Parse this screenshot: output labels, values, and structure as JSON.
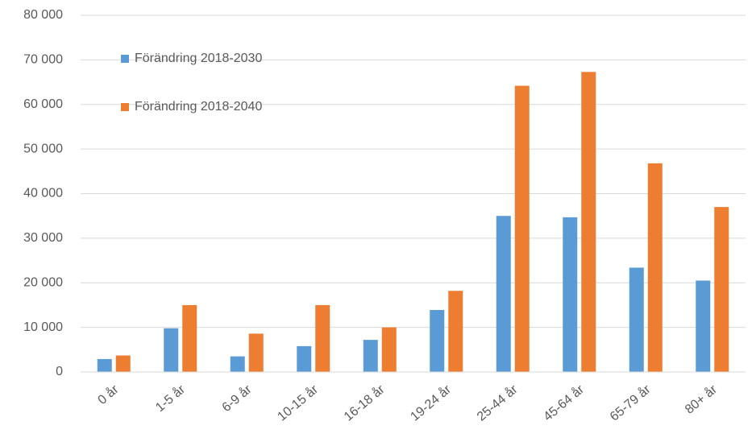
{
  "chart_data": {
    "type": "bar",
    "categories": [
      "0 år",
      "1-5 år",
      "6-9 år",
      "10-15 år",
      "16-18 år",
      "19-24 år",
      "25-44 år",
      "45-64 år",
      "65-79 år",
      "80+ år"
    ],
    "series": [
      {
        "name": "Förändring 2018-2030",
        "color": "#5b9bd5",
        "values": [
          2900,
          9800,
          3500,
          5800,
          7200,
          13900,
          35000,
          34700,
          23400,
          20500
        ]
      },
      {
        "name": "Förändring 2018-2040",
        "color": "#ed7d31",
        "values": [
          3700,
          15000,
          8600,
          15000,
          10000,
          18200,
          64200,
          67300,
          46800,
          37000
        ]
      }
    ],
    "ylim": [
      0,
      80000
    ],
    "yticks": [
      0,
      {
        "value": 10000,
        "label": "10 000"
      },
      {
        "value": 20000,
        "label": "20 000"
      },
      {
        "value": 30000,
        "label": "30 000"
      },
      {
        "value": 40000,
        "label": "40 000"
      },
      {
        "value": 50000,
        "label": "50 000"
      },
      {
        "value": 60000,
        "label": "60 000"
      },
      {
        "value": 70000,
        "label": "70 000"
      },
      {
        "value": 80000,
        "label": "80 000"
      }
    ],
    "grid": true,
    "legend": "top-left"
  }
}
